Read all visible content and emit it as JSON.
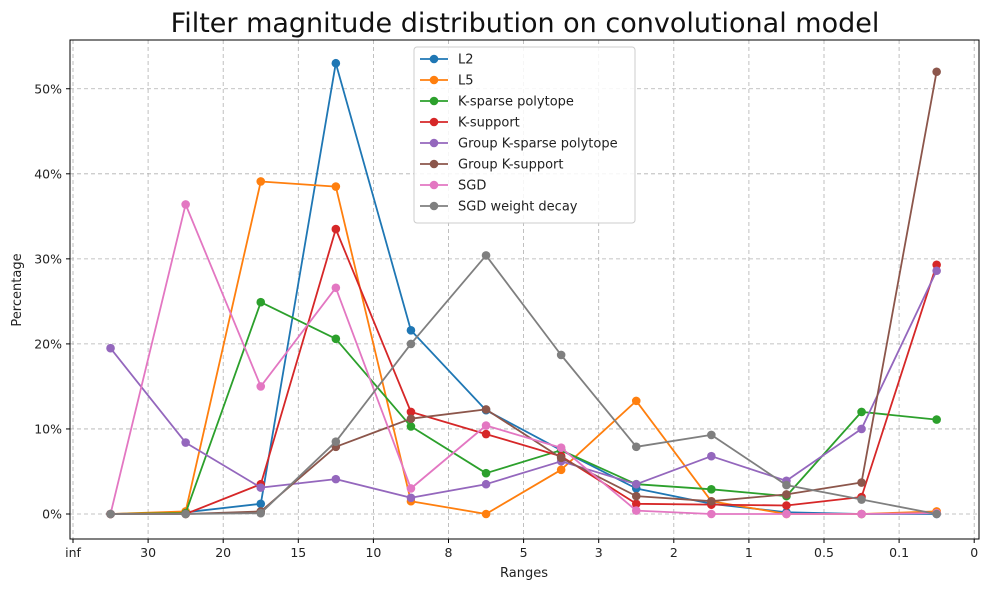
{
  "chart_data": {
    "type": "line",
    "title": "Filter magnitude distribution on convolutional model",
    "xlabel": "Ranges",
    "ylabel": "Percentage",
    "x_tick_labels": [
      "inf",
      "30",
      "20",
      "15",
      "10",
      "8",
      "5",
      "3",
      "2",
      "1",
      "0.5",
      "0.1",
      "0"
    ],
    "y_ticks": [
      0,
      10,
      20,
      30,
      40,
      50
    ],
    "y_tick_labels": [
      "0%",
      "10%",
      "20%",
      "30%",
      "40%",
      "50%"
    ],
    "ylim": [
      -2.6,
      55.8
    ],
    "grid": true,
    "legend_position": "top-center",
    "categories": [
      "inf-30",
      "30-20",
      "20-15",
      "15-10",
      "10-8",
      "8-5",
      "5-3",
      "3-2",
      "2-1",
      "1-0.5",
      "0.5-0.1",
      "0.1-0"
    ],
    "series": [
      {
        "name": "L2",
        "color": "#1f77b4",
        "values": [
          0,
          0.2,
          1.2,
          53,
          21.6,
          12.2,
          7.5,
          3,
          1.2,
          0.2,
          0,
          0
        ]
      },
      {
        "name": "L5",
        "color": "#ff7f0e",
        "values": [
          0,
          0.3,
          39.1,
          38.5,
          1.5,
          0,
          5.2,
          13.3,
          1.5,
          0,
          0,
          0.3
        ]
      },
      {
        "name": "K-sparse polytope",
        "color": "#2ca02c",
        "values": [
          0,
          0.1,
          24.9,
          20.6,
          10.3,
          4.8,
          7.5,
          3.5,
          2.9,
          2.1,
          12,
          11.1
        ]
      },
      {
        "name": "K-support",
        "color": "#d62728",
        "values": [
          0,
          0,
          3.5,
          33.5,
          12,
          9.4,
          6.8,
          1.2,
          1.1,
          1,
          2,
          29.3
        ]
      },
      {
        "name": "Group K-sparse polytope",
        "color": "#9467bd",
        "values": [
          19.5,
          8.4,
          3.1,
          4.1,
          1.9,
          3.5,
          6.2,
          3.5,
          6.8,
          3.9,
          10,
          28.6
        ]
      },
      {
        "name": "Group K-support",
        "color": "#8c564b",
        "values": [
          0,
          0,
          0.3,
          7.9,
          11.2,
          12.3,
          6.6,
          2.1,
          1.5,
          2.3,
          3.7,
          52
        ]
      },
      {
        "name": "SGD",
        "color": "#e377c2",
        "values": [
          0,
          36.4,
          15,
          26.6,
          3,
          10.4,
          7.8,
          0.4,
          0,
          0,
          0,
          0.1
        ]
      },
      {
        "name": "SGD weight decay",
        "color": "#7f7f7f",
        "values": [
          0,
          0,
          0.1,
          8.5,
          20,
          30.4,
          18.7,
          7.9,
          9.3,
          3.4,
          1.7,
          0
        ]
      }
    ]
  }
}
